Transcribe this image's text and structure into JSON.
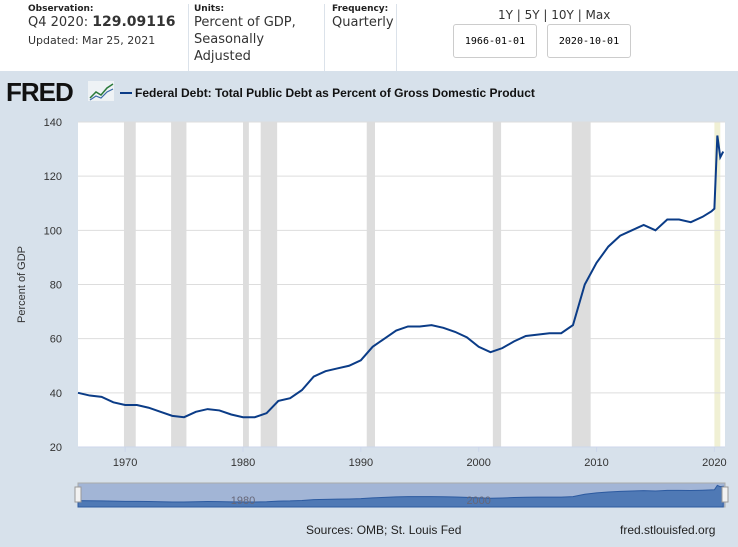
{
  "header": {
    "observation_label": "Observation:",
    "observation_period": "Q4 2020:",
    "observation_value": "129.09116",
    "updated": "Updated: Mar 25, 2021",
    "units_label": "Units:",
    "units_line1": "Percent of GDP,",
    "units_line2": "Seasonally Adjusted",
    "frequency_label": "Frequency:",
    "frequency": "Quarterly",
    "range_links": "1Y | 5Y | 10Y | Max",
    "start_date": "1966-01-01",
    "end_date": "2020-10-01"
  },
  "logo": "FRED",
  "footer": {
    "sources": "Sources: OMB; St. Louis Fed",
    "site": "fred.stlouisfed.org"
  },
  "chart_data": {
    "type": "line",
    "title": "Federal Debt: Total Public Debt as Percent of Gross Domestic Product",
    "ylabel": "Percent of GDP",
    "xlabel": "",
    "ylim": [
      20,
      140
    ],
    "xlim": [
      1966,
      2020.9
    ],
    "yticks": [
      20,
      40,
      60,
      80,
      100,
      120,
      140
    ],
    "xticks": [
      1970,
      1980,
      1990,
      2000,
      2010,
      2020
    ],
    "grid": true,
    "legend": "top-left",
    "line_color": "#0b3c87",
    "recession_color": "#dddddd",
    "recessions": [
      [
        1969.9,
        1970.9
      ],
      [
        1973.9,
        1975.2
      ],
      [
        1980.0,
        1980.5
      ],
      [
        1981.5,
        1982.9
      ],
      [
        1990.5,
        1991.2
      ],
      [
        2001.2,
        2001.9
      ],
      [
        2007.9,
        2009.5
      ],
      [
        2020.0,
        2020.5
      ]
    ],
    "navigator_labels": [
      "1980",
      "2000"
    ],
    "series": [
      {
        "name": "Federal Debt: Total Public Debt as Percent of Gross Domestic Product",
        "x": [
          1966,
          1967,
          1968,
          1969,
          1970,
          1971,
          1972,
          1973,
          1974,
          1975,
          1976,
          1977,
          1978,
          1979,
          1980,
          1981,
          1982,
          1983,
          1984,
          1985,
          1986,
          1987,
          1988,
          1989,
          1990,
          1991,
          1992,
          1993,
          1994,
          1995,
          1996,
          1997,
          1998,
          1999,
          2000,
          2001,
          2002,
          2003,
          2004,
          2005,
          2006,
          2007,
          2008,
          2009,
          2010,
          2011,
          2012,
          2013,
          2014,
          2015,
          2016,
          2017,
          2018,
          2019,
          2019.75,
          2020,
          2020.25,
          2020.5,
          2020.75
        ],
        "values": [
          40,
          39,
          38.5,
          36.5,
          35.5,
          35.5,
          34.5,
          33,
          31.5,
          31,
          33,
          34,
          33.5,
          32,
          31,
          31,
          32.5,
          37,
          38,
          41,
          46,
          48,
          49,
          50,
          52,
          57,
          60,
          63,
          64.5,
          64.5,
          65,
          64,
          62.5,
          60.5,
          57,
          55,
          56.5,
          59,
          61,
          61.5,
          62,
          62,
          65,
          80,
          88,
          94,
          98,
          100,
          102,
          100,
          104,
          104,
          103,
          105,
          107,
          108,
          135,
          127,
          129.09116
        ]
      }
    ]
  }
}
